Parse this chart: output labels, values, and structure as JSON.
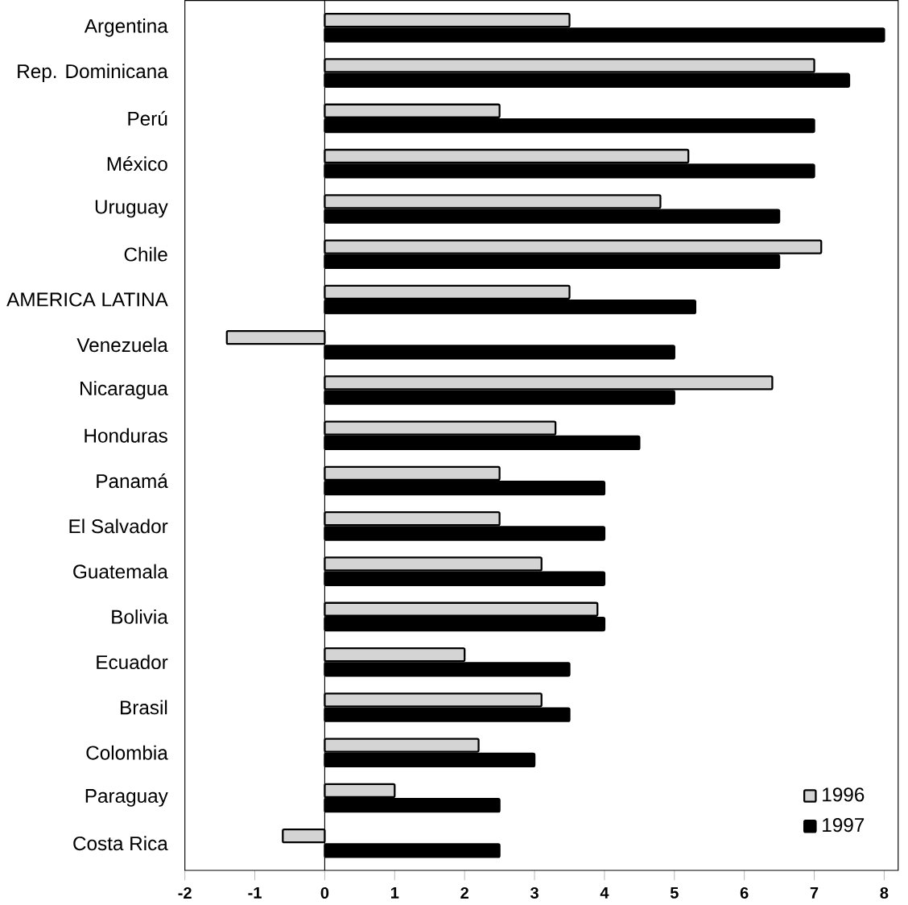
{
  "chart_data": {
    "type": "bar",
    "orientation": "horizontal",
    "categories": [
      "Argentina",
      "Rep. Dominicana",
      "Perú",
      "México",
      "Uruguay",
      "Chile",
      "AMERICA LATINA",
      "Venezuela",
      "Nicaragua",
      "Honduras",
      "Panamá",
      "El Salvador",
      "Guatemala",
      "Bolivia",
      "Ecuador",
      "Brasil",
      "Colombia",
      "Paraguay",
      "Costa Rica"
    ],
    "series": [
      {
        "name": "1996",
        "color": "#d4d4d4",
        "values": [
          3.5,
          7.0,
          2.5,
          5.2,
          4.8,
          7.1,
          3.5,
          -1.4,
          6.4,
          3.3,
          2.5,
          2.5,
          3.1,
          3.9,
          2.0,
          3.1,
          2.2,
          1.0,
          -0.6
        ]
      },
      {
        "name": "1997",
        "color": "#000000",
        "values": [
          8.0,
          7.5,
          7.0,
          7.0,
          6.5,
          6.5,
          5.3,
          5.0,
          5.0,
          4.5,
          4.0,
          4.0,
          4.0,
          4.0,
          3.5,
          3.5,
          3.0,
          2.5,
          2.5
        ]
      }
    ],
    "xlim": [
      -2,
      8.2
    ],
    "xticks": [
      -2,
      -1,
      0,
      1,
      2,
      3,
      4,
      5,
      6,
      7,
      8
    ],
    "ref_lines": [
      {
        "axis": "x",
        "value": 0
      }
    ],
    "legend": "bottom right",
    "grid": false
  }
}
